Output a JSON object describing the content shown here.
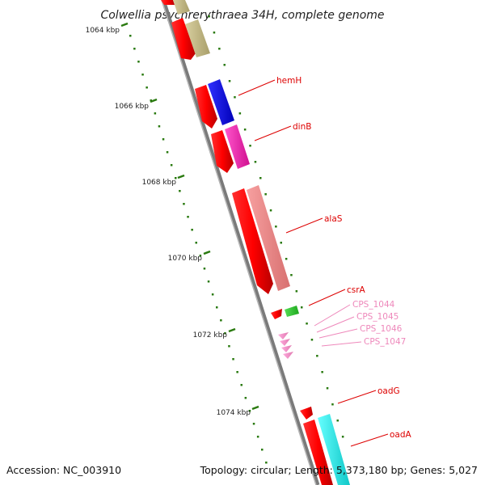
{
  "title": "Colwellia psychrerythraea 34H, complete genome",
  "accession_text": "Accession: NC_003910",
  "summary_text": "Topology: circular; Length: 5,373,180 bp; Genes: 5,027",
  "colors": {
    "cds": "#ff0000",
    "cds_dark": "#b00000",
    "rna": "#ff99cc",
    "label_red": "#dd0000",
    "label_pink": "#ee88bb",
    "tick": "#2a7a10",
    "backbone": "#888888"
  },
  "kbp_labels": [
    "1064 kbp",
    "1066 kbp",
    "1068 kbp",
    "1070 kbp",
    "1072 kbp",
    "1074 kbp"
  ],
  "gene_labels": {
    "hemH": "hemH",
    "dinB": "dinB",
    "alaS": "alaS",
    "csrA": "csrA",
    "cps1044": "CPS_1044",
    "cps1045": "CPS_1045",
    "cps1046": "CPS_1046",
    "cps1047": "CPS_1047",
    "oadG": "oadG",
    "oadA": "oadA"
  }
}
